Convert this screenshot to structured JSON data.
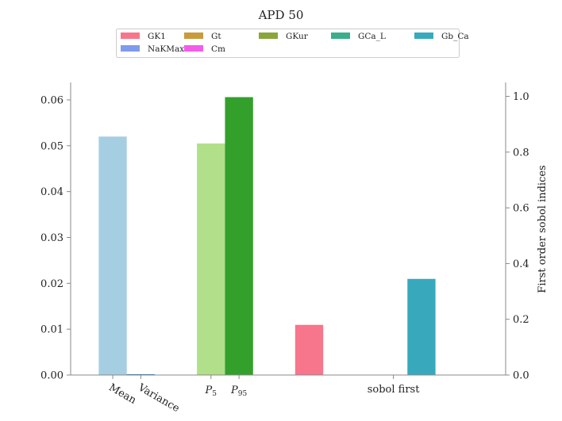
{
  "chart_data": {
    "type": "bar",
    "title": "APD 50",
    "left_axis": {
      "ylim": [
        0,
        0.0638
      ],
      "ticks": [
        "0.00",
        "0.01",
        "0.02",
        "0.03",
        "0.04",
        "0.05",
        "0.06"
      ],
      "tick_values": [
        0,
        0.01,
        0.02,
        0.03,
        0.04,
        0.05,
        0.06
      ]
    },
    "right_axis": {
      "label": "First order sobol indices",
      "ylim": [
        0,
        1.05
      ],
      "ticks": [
        "0.0",
        "0.2",
        "0.4",
        "0.6",
        "0.8",
        "1.0"
      ],
      "tick_values": [
        0,
        0.2,
        0.4,
        0.6,
        0.8,
        1.0
      ]
    },
    "x_labels": [
      {
        "text": "Mean",
        "pos": 1.0,
        "rotated": true
      },
      {
        "text": "Variance",
        "pos": 2.0,
        "rotated": true
      },
      {
        "text": "P5",
        "sub": "5",
        "pos": 4.5,
        "math": true
      },
      {
        "text": "P95",
        "sub": "95",
        "pos": 5.5,
        "math": true
      },
      {
        "text": "sobol first",
        "pos": 11.0
      }
    ],
    "bars": [
      {
        "name": "Mean",
        "axis": "left",
        "x": 1.0,
        "value": 0.052,
        "color": "#a6cee3"
      },
      {
        "name": "Variance",
        "axis": "left",
        "x": 2.0,
        "value": 0.00015,
        "color": "#1f78b4"
      },
      {
        "name": "P5",
        "axis": "left",
        "x": 4.5,
        "value": 0.0505,
        "color": "#b2df8a"
      },
      {
        "name": "P95",
        "axis": "left",
        "x": 5.5,
        "value": 0.0606,
        "color": "#33a02c"
      },
      {
        "name": "GK1",
        "axis": "right",
        "x": 8.0,
        "value": 0.18,
        "color": "#f7768b"
      },
      {
        "name": "Gt",
        "axis": "right",
        "x": 9.0,
        "value": 0.0,
        "color": "#c89b3c"
      },
      {
        "name": "GKur",
        "axis": "right",
        "x": 10.0,
        "value": 0.0,
        "color": "#8aa63a"
      },
      {
        "name": "GCa_L",
        "axis": "right",
        "x": 11.0,
        "value": 0.0,
        "color": "#3aae8c"
      },
      {
        "name": "Gb_Ca",
        "axis": "right",
        "x": 12.0,
        "value": 0.345,
        "color": "#38a9bd"
      },
      {
        "name": "NaKMax",
        "axis": "right",
        "x": 13.0,
        "value": 0.0,
        "color": "#7e9bec"
      },
      {
        "name": "Cm",
        "axis": "right",
        "x": 14.0,
        "value": 0.0,
        "color": "#f25de8"
      }
    ],
    "legend": {
      "placement": "top-center",
      "entries": [
        {
          "label": "GK1",
          "color": "#f7768b"
        },
        {
          "label": "Gt",
          "color": "#c89b3c"
        },
        {
          "label": "GKur",
          "color": "#8aa63a"
        },
        {
          "label": "GCa_L",
          "color": "#3aae8c"
        },
        {
          "label": "Gb_Ca",
          "color": "#38a9bd"
        },
        {
          "label": "NaKMax",
          "color": "#7e9bec"
        },
        {
          "label": "Cm",
          "color": "#f25de8"
        }
      ]
    },
    "grid": false
  }
}
